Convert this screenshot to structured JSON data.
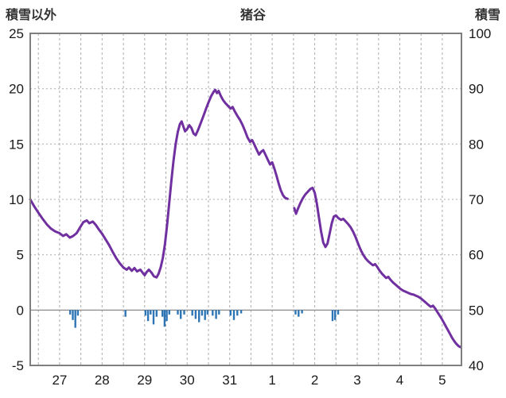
{
  "header": {
    "left_axis_title": "積雪以外",
    "title": "猪谷",
    "right_axis_title": "積雪"
  },
  "chart_data": {
    "type": "line",
    "title": "猪谷",
    "left_axis": {
      "label": "積雪以外",
      "min": -5,
      "max": 25,
      "ticks": [
        25,
        20,
        15,
        10,
        5,
        0,
        -5
      ]
    },
    "right_axis": {
      "label": "積雪",
      "min": 40,
      "max": 100,
      "ticks": [
        100,
        90,
        80,
        70,
        60,
        50,
        40
      ]
    },
    "x_axis": {
      "tick_labels": [
        "27",
        "28",
        "29",
        "30",
        "31",
        "1",
        "2",
        "3",
        "4",
        "5"
      ],
      "tick_positions": [
        0,
        1,
        2,
        3,
        4,
        5,
        6,
        7,
        8,
        9
      ],
      "min": -0.69,
      "max": 9.45,
      "minor_grid_step": 0.5,
      "grid": "dashed"
    },
    "colors": {
      "line": "#7030A0",
      "bars": "#2E75B6",
      "grid": "#ABABAB",
      "border": "#7F7F7F",
      "tick_text": "#1A1A1A",
      "header_text": "#333333"
    },
    "series": [
      {
        "name": "積雪",
        "type": "line",
        "axis": "right_axis",
        "color": "#7030A0",
        "points": [
          [
            -0.69,
            70.0
          ],
          [
            -0.6,
            68.8
          ],
          [
            -0.5,
            67.6
          ],
          [
            -0.4,
            66.5
          ],
          [
            -0.3,
            65.5
          ],
          [
            -0.2,
            64.7
          ],
          [
            -0.1,
            64.2
          ],
          [
            0,
            63.9
          ],
          [
            0.08,
            63.4
          ],
          [
            0.16,
            63.7
          ],
          [
            0.24,
            63.1
          ],
          [
            0.32,
            63.4
          ],
          [
            0.4,
            63.9
          ],
          [
            0.48,
            64.9
          ],
          [
            0.56,
            65.9
          ],
          [
            0.64,
            66.2
          ],
          [
            0.7,
            65.7
          ],
          [
            0.78,
            66.0
          ],
          [
            0.85,
            65.4
          ],
          [
            0.92,
            64.6
          ],
          [
            1.0,
            63.8
          ],
          [
            1.08,
            62.8
          ],
          [
            1.16,
            61.8
          ],
          [
            1.25,
            60.5
          ],
          [
            1.33,
            59.4
          ],
          [
            1.42,
            58.4
          ],
          [
            1.5,
            57.7
          ],
          [
            1.58,
            57.3
          ],
          [
            1.63,
            57.7
          ],
          [
            1.7,
            57.1
          ],
          [
            1.76,
            57.6
          ],
          [
            1.82,
            57.0
          ],
          [
            1.9,
            57.3
          ],
          [
            1.96,
            56.7
          ],
          [
            2.0,
            56.3
          ],
          [
            2.05,
            56.9
          ],
          [
            2.1,
            57.3
          ],
          [
            2.16,
            56.8
          ],
          [
            2.22,
            56.1
          ],
          [
            2.28,
            55.9
          ],
          [
            2.33,
            56.6
          ],
          [
            2.38,
            57.8
          ],
          [
            2.43,
            59.5
          ],
          [
            2.48,
            62.0
          ],
          [
            2.53,
            65.5
          ],
          [
            2.58,
            69.5
          ],
          [
            2.63,
            73.5
          ],
          [
            2.68,
            77.0
          ],
          [
            2.73,
            80.0
          ],
          [
            2.78,
            82.2
          ],
          [
            2.83,
            83.6
          ],
          [
            2.87,
            84.1
          ],
          [
            2.91,
            83.2
          ],
          [
            2.95,
            82.3
          ],
          [
            3.0,
            82.7
          ],
          [
            3.05,
            83.4
          ],
          [
            3.1,
            82.9
          ],
          [
            3.15,
            81.9
          ],
          [
            3.2,
            81.6
          ],
          [
            3.26,
            82.6
          ],
          [
            3.32,
            83.8
          ],
          [
            3.38,
            85.0
          ],
          [
            3.44,
            86.3
          ],
          [
            3.5,
            87.5
          ],
          [
            3.56,
            88.6
          ],
          [
            3.62,
            89.4
          ],
          [
            3.66,
            89.8
          ],
          [
            3.7,
            89.2
          ],
          [
            3.74,
            89.6
          ],
          [
            3.79,
            88.7
          ],
          [
            3.84,
            88.0
          ],
          [
            3.9,
            87.4
          ],
          [
            3.96,
            86.9
          ],
          [
            4.02,
            86.4
          ],
          [
            4.07,
            86.7
          ],
          [
            4.12,
            85.9
          ],
          [
            4.18,
            85.1
          ],
          [
            4.24,
            84.4
          ],
          [
            4.3,
            83.5
          ],
          [
            4.36,
            82.4
          ],
          [
            4.42,
            81.2
          ],
          [
            4.48,
            80.4
          ],
          [
            4.53,
            80.7
          ],
          [
            4.58,
            79.9
          ],
          [
            4.64,
            78.9
          ],
          [
            4.69,
            78.1
          ],
          [
            4.74,
            78.6
          ],
          [
            4.79,
            78.9
          ],
          [
            4.84,
            78.1
          ],
          [
            4.9,
            77.1
          ],
          [
            4.95,
            76.3
          ],
          [
            5.0,
            76.7
          ],
          [
            5.05,
            75.6
          ],
          [
            5.1,
            74.3
          ],
          [
            5.15,
            72.9
          ],
          [
            5.2,
            71.7
          ],
          [
            5.25,
            70.8
          ],
          [
            5.3,
            70.3
          ],
          [
            5.36,
            70.1
          ],
          null,
          [
            5.52,
            68.4
          ],
          [
            5.56,
            67.4
          ],
          [
            5.6,
            68.2
          ],
          [
            5.66,
            69.3
          ],
          [
            5.72,
            70.2
          ],
          [
            5.78,
            70.9
          ],
          [
            5.84,
            71.4
          ],
          [
            5.9,
            71.9
          ],
          [
            5.95,
            72.1
          ],
          [
            6.0,
            71.2
          ],
          [
            6.05,
            69.2
          ],
          [
            6.1,
            66.7
          ],
          [
            6.15,
            64.2
          ],
          [
            6.2,
            62.2
          ],
          [
            6.25,
            61.4
          ],
          [
            6.3,
            62.0
          ],
          [
            6.35,
            63.8
          ],
          [
            6.4,
            65.7
          ],
          [
            6.45,
            66.9
          ],
          [
            6.5,
            67.1
          ],
          [
            6.56,
            66.6
          ],
          [
            6.62,
            66.3
          ],
          [
            6.67,
            66.5
          ],
          [
            6.72,
            66.1
          ],
          [
            6.78,
            65.6
          ],
          [
            6.84,
            65.0
          ],
          [
            6.9,
            64.2
          ],
          [
            6.96,
            63.2
          ],
          [
            7.02,
            62.0
          ],
          [
            7.08,
            60.9
          ],
          [
            7.14,
            60.0
          ],
          [
            7.2,
            59.3
          ],
          [
            7.26,
            58.8
          ],
          [
            7.32,
            58.4
          ],
          [
            7.37,
            58.1
          ],
          [
            7.42,
            58.3
          ],
          [
            7.47,
            57.8
          ],
          [
            7.52,
            57.2
          ],
          [
            7.58,
            56.6
          ],
          [
            7.64,
            56.1
          ],
          [
            7.68,
            55.8
          ],
          [
            7.73,
            56.0
          ],
          [
            7.78,
            55.5
          ],
          [
            7.84,
            55.0
          ],
          [
            7.9,
            54.6
          ],
          [
            7.96,
            54.2
          ],
          [
            8.02,
            53.8
          ],
          [
            8.08,
            53.5
          ],
          [
            8.14,
            53.3
          ],
          [
            8.2,
            53.1
          ],
          [
            8.26,
            52.9
          ],
          [
            8.32,
            52.8
          ],
          [
            8.38,
            52.6
          ],
          [
            8.44,
            52.4
          ],
          [
            8.5,
            52.1
          ],
          [
            8.56,
            51.7
          ],
          [
            8.62,
            51.3
          ],
          [
            8.68,
            50.9
          ],
          [
            8.73,
            50.6
          ],
          [
            8.78,
            50.8
          ],
          [
            8.83,
            50.3
          ],
          [
            8.88,
            49.7
          ],
          [
            8.93,
            49.1
          ],
          [
            8.98,
            48.5
          ],
          [
            9.03,
            47.8
          ],
          [
            9.08,
            47.1
          ],
          [
            9.13,
            46.4
          ],
          [
            9.18,
            45.7
          ],
          [
            9.23,
            45.0
          ],
          [
            9.28,
            44.4
          ],
          [
            9.33,
            43.9
          ],
          [
            9.38,
            43.5
          ],
          [
            9.43,
            43.3
          ]
        ]
      },
      {
        "name": "積雪以外",
        "type": "bar",
        "axis": "left_axis",
        "color": "#2E75B6",
        "points": [
          [
            0.25,
            -0.4
          ],
          [
            0.31,
            -0.9
          ],
          [
            0.37,
            -1.6
          ],
          [
            0.43,
            -0.5
          ],
          [
            1.55,
            -0.6
          ],
          [
            2.02,
            -0.5
          ],
          [
            2.08,
            -1.0
          ],
          [
            2.14,
            -0.4
          ],
          [
            2.21,
            -1.3
          ],
          [
            2.28,
            -0.6
          ],
          [
            2.42,
            -0.6
          ],
          [
            2.47,
            -1.5
          ],
          [
            2.52,
            -1.0
          ],
          [
            2.58,
            -0.4
          ],
          [
            2.78,
            -0.4
          ],
          [
            2.85,
            -0.8
          ],
          [
            2.93,
            -0.4
          ],
          [
            3.12,
            -0.5
          ],
          [
            3.2,
            -0.8
          ],
          [
            3.28,
            -1.1
          ],
          [
            3.35,
            -0.5
          ],
          [
            3.42,
            -0.9
          ],
          [
            3.48,
            -0.4
          ],
          [
            3.6,
            -0.5
          ],
          [
            3.68,
            -0.8
          ],
          [
            3.75,
            -0.4
          ],
          [
            4.02,
            -0.5
          ],
          [
            4.1,
            -0.9
          ],
          [
            4.18,
            -0.5
          ],
          [
            4.27,
            -0.3
          ],
          [
            5.55,
            -0.4
          ],
          [
            5.62,
            -0.6
          ],
          [
            5.7,
            -0.3
          ],
          [
            6.42,
            -1.0
          ],
          [
            6.48,
            -0.9
          ],
          [
            6.55,
            -0.4
          ]
        ]
      }
    ]
  }
}
